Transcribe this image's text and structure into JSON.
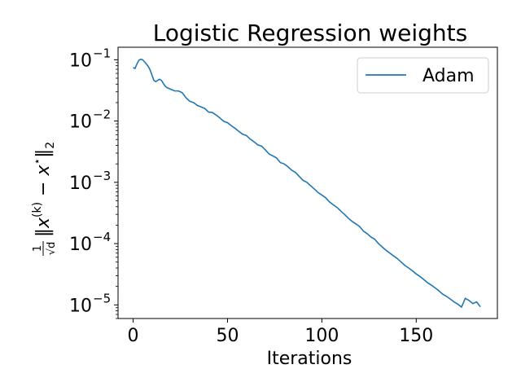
{
  "chart_data": {
    "type": "line",
    "title": "Logistic Regression weights",
    "xlabel": "Iterations",
    "ylabel": "1/√d ‖x(k) − x*‖2",
    "yscale": "log",
    "xlim": [
      -8,
      193
    ],
    "ylim": [
      6e-06,
      0.16
    ],
    "grid": false,
    "legend": {
      "placement": "top-right",
      "entries": [
        "Adam"
      ]
    },
    "x_ticks": [
      {
        "value": 0,
        "label": "0"
      },
      {
        "value": 50,
        "label": "50"
      },
      {
        "value": 100,
        "label": "100"
      },
      {
        "value": 150,
        "label": "150"
      }
    ],
    "y_ticks": [
      {
        "value": 0.1,
        "label": "10",
        "exp": "−1"
      },
      {
        "value": 0.01,
        "label": "10",
        "exp": "−2"
      },
      {
        "value": 0.001,
        "label": "10",
        "exp": "−3"
      },
      {
        "value": 0.0001,
        "label": "10",
        "exp": "−4"
      },
      {
        "value": 1e-05,
        "label": "10",
        "exp": "−5"
      }
    ],
    "series": [
      {
        "name": "Adam",
        "color": "#1f77b4",
        "x": [
          0,
          1,
          2,
          3,
          4,
          5,
          6,
          7,
          8,
          9,
          10,
          11,
          12,
          13,
          14,
          15,
          16,
          17,
          18,
          19,
          20,
          22,
          24,
          26,
          28,
          30,
          32,
          34,
          36,
          38,
          40,
          42,
          44,
          46,
          48,
          50,
          52,
          54,
          56,
          58,
          60,
          62,
          64,
          66,
          68,
          70,
          72,
          74,
          76,
          78,
          80,
          82,
          84,
          86,
          88,
          90,
          92,
          94,
          96,
          98,
          100,
          102,
          104,
          106,
          108,
          110,
          112,
          114,
          116,
          118,
          120,
          122,
          124,
          126,
          128,
          130,
          132,
          134,
          136,
          138,
          140,
          142,
          144,
          146,
          148,
          150,
          152,
          154,
          156,
          158,
          160,
          162,
          164,
          166,
          168,
          170,
          172,
          174,
          176,
          178,
          180,
          182,
          184
        ],
        "y": [
          0.075,
          0.072,
          0.085,
          0.098,
          0.102,
          0.1,
          0.093,
          0.085,
          0.078,
          0.068,
          0.056,
          0.046,
          0.044,
          0.046,
          0.048,
          0.046,
          0.041,
          0.037,
          0.035,
          0.034,
          0.033,
          0.031,
          0.031,
          0.029,
          0.024,
          0.021,
          0.02,
          0.018,
          0.017,
          0.016,
          0.014,
          0.0138,
          0.0125,
          0.0112,
          0.0099,
          0.0094,
          0.0084,
          0.0076,
          0.0068,
          0.0061,
          0.0058,
          0.0051,
          0.0046,
          0.0041,
          0.0039,
          0.0034,
          0.0029,
          0.0027,
          0.0025,
          0.0021,
          0.002,
          0.0018,
          0.00158,
          0.00145,
          0.00125,
          0.00108,
          0.001,
          0.00088,
          0.00078,
          0.00068,
          0.00062,
          0.00056,
          0.00048,
          0.00043,
          0.00039,
          0.00034,
          0.0003,
          0.00026,
          0.00023,
          0.00021,
          0.00019,
          0.00016,
          0.000145,
          0.000128,
          0.000118,
          0.0001,
          8.8e-05,
          7.8e-05,
          7e-05,
          6.3e-05,
          5.7e-05,
          5e-05,
          4.4e-05,
          4e-05,
          3.6e-05,
          3.2e-05,
          2.9e-05,
          2.6e-05,
          2.3e-05,
          2.1e-05,
          1.9e-05,
          1.7e-05,
          1.5e-05,
          1.38e-05,
          1.25e-05,
          1.12e-05,
          1.03e-05,
          9.2e-06,
          1.28e-05,
          1.18e-05,
          1.05e-05,
          1.12e-05,
          9.3e-06
        ]
      }
    ]
  }
}
